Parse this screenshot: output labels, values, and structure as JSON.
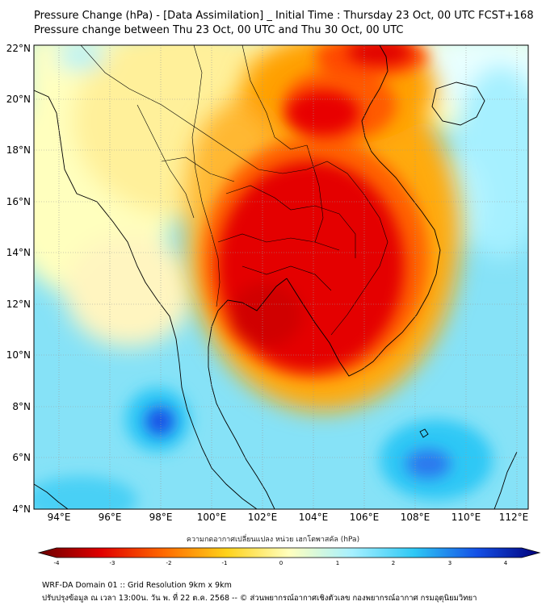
{
  "header": {
    "title_line1": "Pressure Change (hPa) - [Data Assimilation] _ Initial Time : Thursday 23 Oct, 00 UTC FCST+168",
    "title_line2": "Pressure change between Thu 23 Oct, 00 UTC and Thu 30 Oct, 00 UTC"
  },
  "map": {
    "lat_labels": [
      "22°N",
      "20°N",
      "18°N",
      "16°N",
      "14°N",
      "12°N",
      "10°N",
      "8°N",
      "6°N",
      "4°N"
    ],
    "lon_labels": [
      "94°E",
      "96°E",
      "98°E",
      "100°E",
      "102°E",
      "104°E",
      "106°E",
      "108°E",
      "110°E",
      "112°E"
    ]
  },
  "colorbar": {
    "label": "ความกดอากาศเปลี่ยนแปลง หน่วย เฮกโตพาสคัล (hPa)",
    "ticks": [
      "-4",
      "-3",
      "-2",
      "-1",
      "0",
      "1",
      "2",
      "3",
      "4"
    ],
    "colors": {
      "min": "#6b0000",
      "neg3": "#e00000",
      "neg2": "#ff6a00",
      "neg1": "#ffd21a",
      "zero": "#ffffbe",
      "pos1": "#a6f0ff",
      "pos2": "#2ec8f5",
      "pos3": "#1450e6",
      "max": "#00007a"
    }
  },
  "footer": {
    "line1": "WRF-DA Domain 01 :: Grid Resolution 9km x 9km",
    "line2": "ปรับปรุงข้อมูล ณ เวลา 13:00น. วัน พ. ที่ 22 ต.ค. 2568 -- © ส่วนพยากรณ์อากาศเชิงตัวเลข กองพยากรณ์อากาศ กรมอุตุนิยมวิทยา"
  }
}
